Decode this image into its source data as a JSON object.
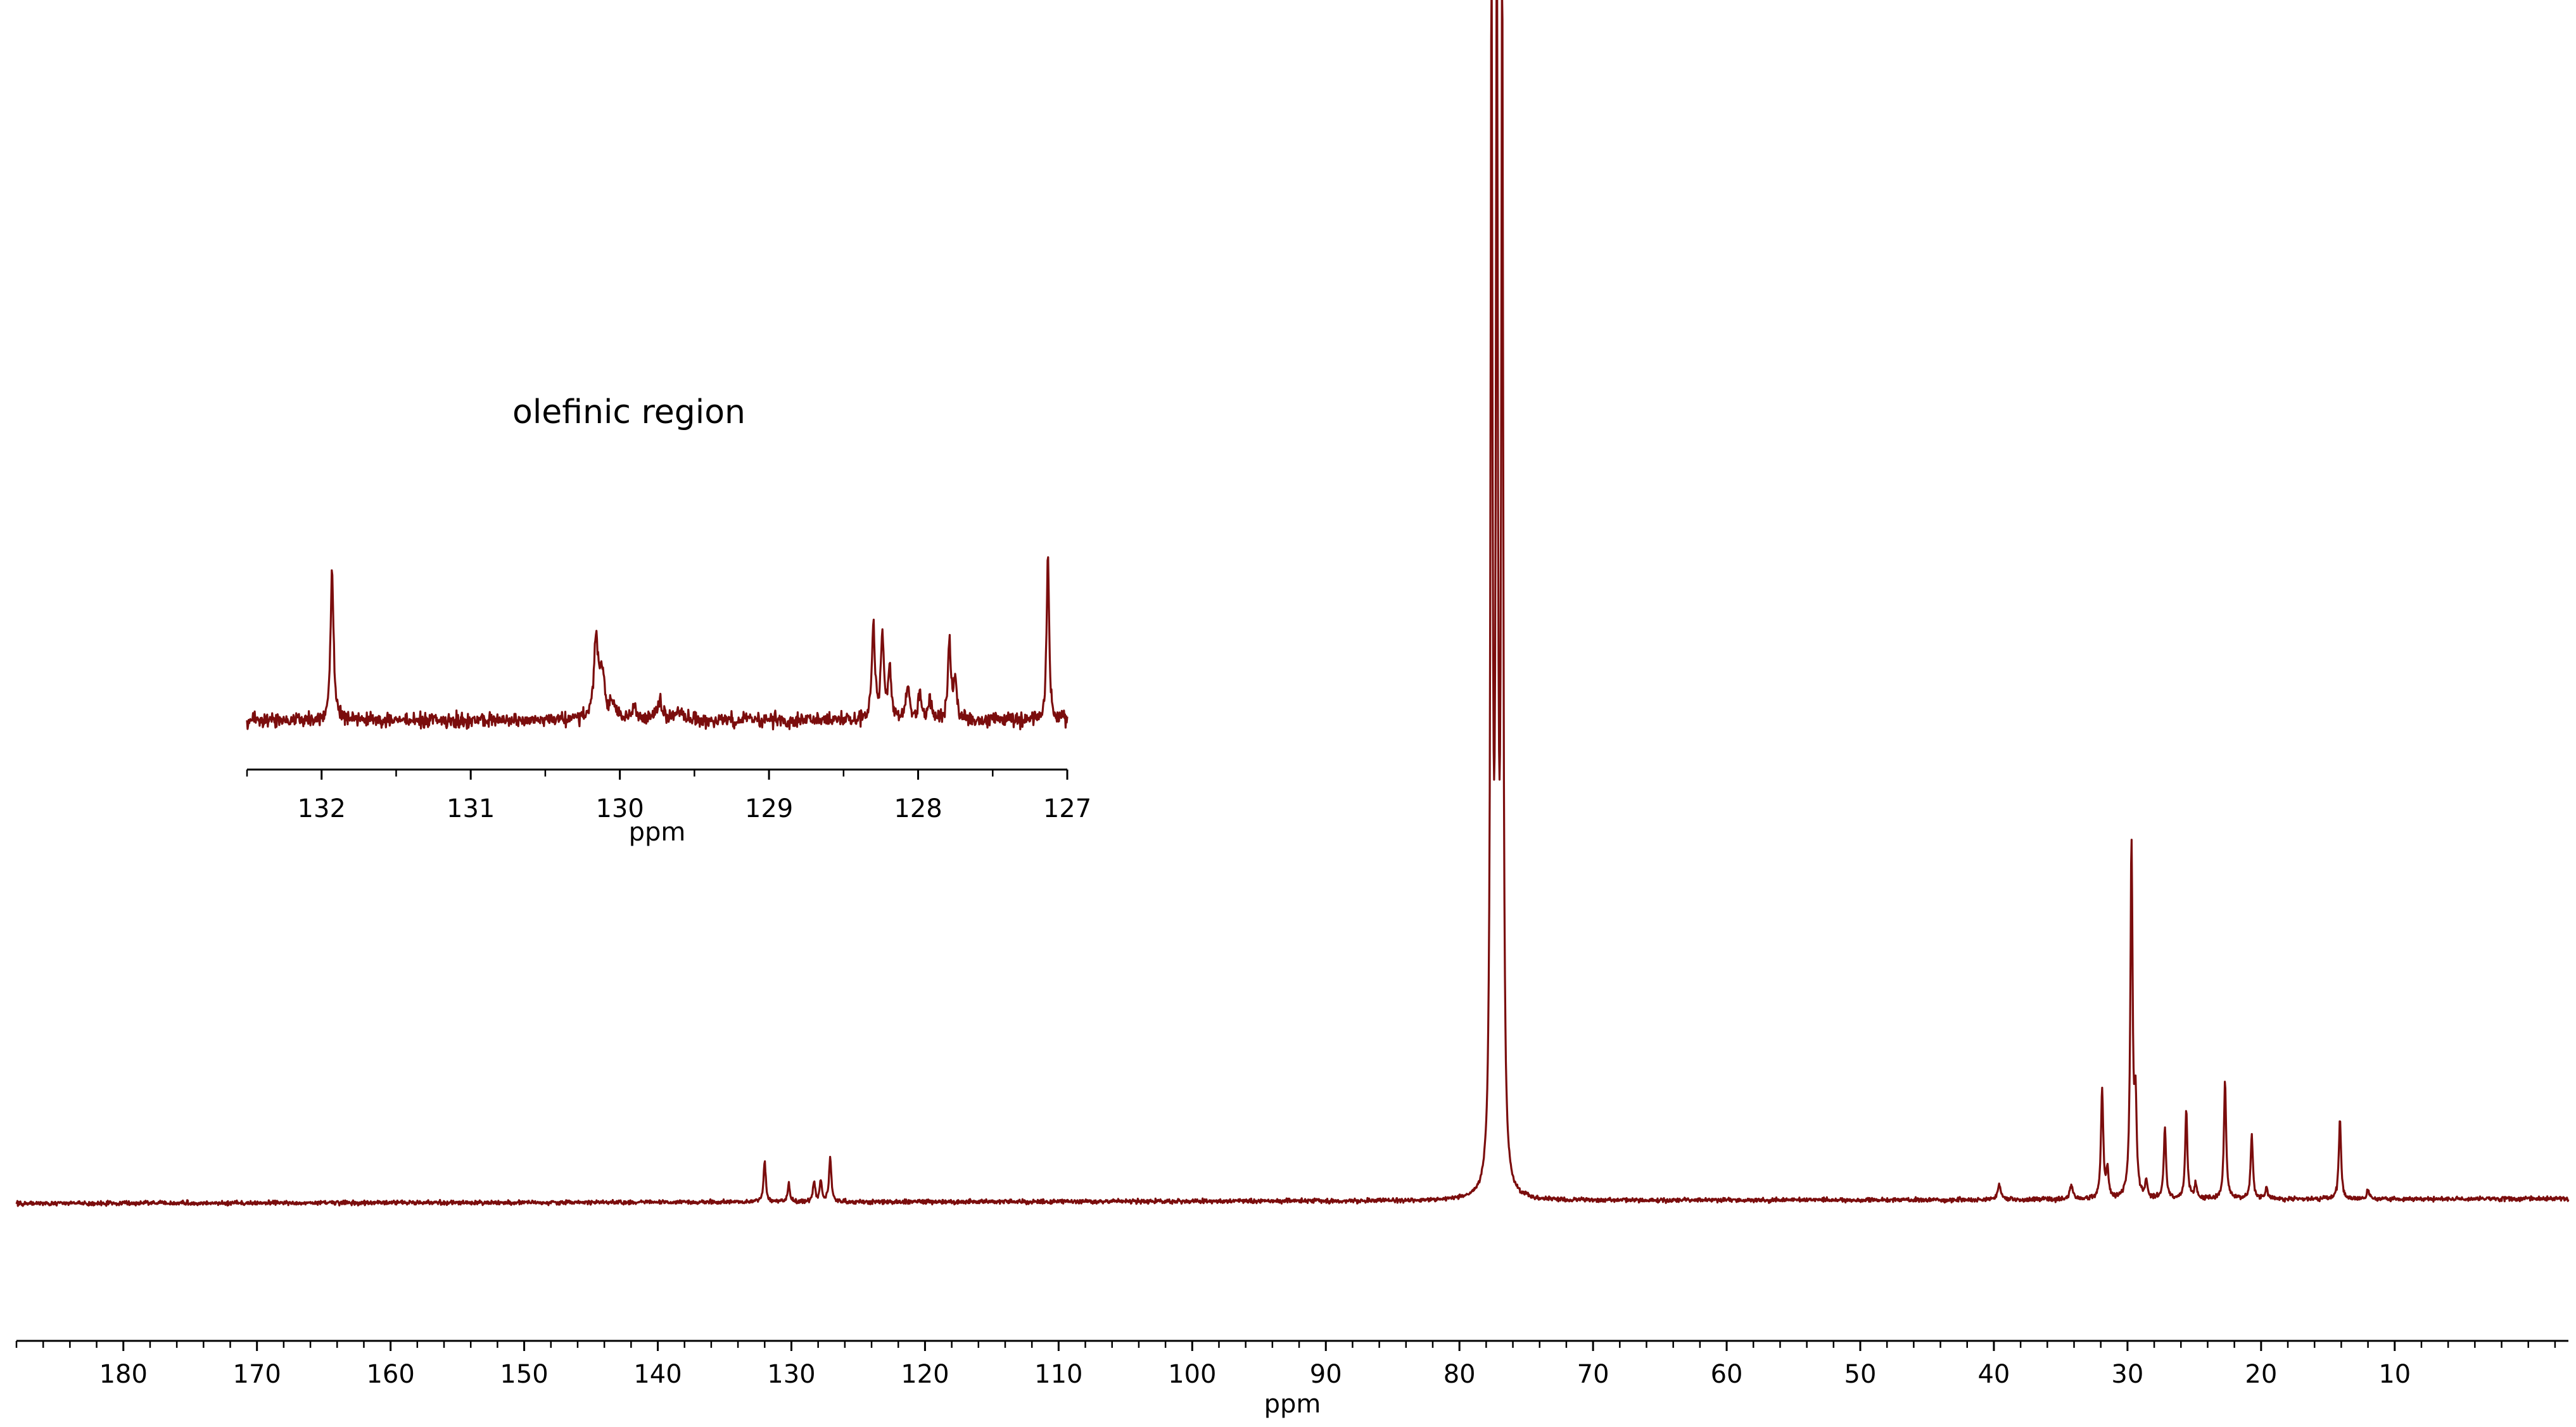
{
  "colors": {
    "spectrum": "#7b0d0d",
    "axis": "#000000",
    "background": "#ffffff"
  },
  "chart_data": [
    {
      "type": "line",
      "description": "13C NMR spectrum, full range",
      "xlabel": "ppm",
      "xlim": [
        188,
        -3
      ],
      "x_reversed": true,
      "major_ticks": [
        180,
        170,
        160,
        150,
        140,
        130,
        120,
        110,
        100,
        90,
        80,
        70,
        60,
        50,
        40,
        30,
        20,
        10
      ],
      "minor_tick_step": 2,
      "grid": false,
      "series": [
        {
          "peaks": [
            {
              "ppm": 77.6,
              "height": 1.0,
              "width": 0.09
            },
            {
              "ppm": 77.2,
              "height": 1.0,
              "width": 0.09
            },
            {
              "ppm": 76.8,
              "height": 1.0,
              "width": 0.09
            },
            {
              "ppm": 29.7,
              "height": 0.3,
              "width": 0.1
            },
            {
              "ppm": 29.4,
              "height": 0.075,
              "width": 0.1
            },
            {
              "ppm": 31.9,
              "height": 0.092,
              "width": 0.1
            },
            {
              "ppm": 31.5,
              "height": 0.025,
              "width": 0.1
            },
            {
              "ppm": 27.2,
              "height": 0.06,
              "width": 0.1
            },
            {
              "ppm": 25.6,
              "height": 0.075,
              "width": 0.1
            },
            {
              "ppm": 22.7,
              "height": 0.1,
              "width": 0.1
            },
            {
              "ppm": 20.7,
              "height": 0.055,
              "width": 0.1
            },
            {
              "ppm": 14.1,
              "height": 0.068,
              "width": 0.1
            },
            {
              "ppm": 132.0,
              "height": 0.035,
              "width": 0.1
            },
            {
              "ppm": 130.2,
              "height": 0.015,
              "width": 0.1
            },
            {
              "ppm": 128.3,
              "height": 0.016,
              "width": 0.1
            },
            {
              "ppm": 127.8,
              "height": 0.017,
              "width": 0.1
            },
            {
              "ppm": 127.1,
              "height": 0.038,
              "width": 0.1
            },
            {
              "ppm": 39.6,
              "height": 0.012,
              "width": 0.15
            },
            {
              "ppm": 34.2,
              "height": 0.012,
              "width": 0.15
            },
            {
              "ppm": 28.6,
              "height": 0.014,
              "width": 0.1
            },
            {
              "ppm": 24.9,
              "height": 0.012,
              "width": 0.1
            },
            {
              "ppm": 19.6,
              "height": 0.01,
              "width": 0.1
            },
            {
              "ppm": 12.0,
              "height": 0.008,
              "width": 0.1
            }
          ]
        }
      ]
    },
    {
      "type": "line",
      "description": "inset zoom of the olefinic region",
      "annotation": "olefinic region",
      "xlabel": "ppm",
      "xlim": [
        132.5,
        127.0
      ],
      "x_reversed": true,
      "major_ticks": [
        132,
        131,
        130,
        129,
        128,
        127
      ],
      "minor_tick_step": 0.5,
      "grid": false,
      "series": [
        {
          "peaks": [
            {
              "ppm": 131.93,
              "height": 1.0,
              "width": 0.012
            },
            {
              "ppm": 130.16,
              "height": 0.5,
              "width": 0.018
            },
            {
              "ppm": 130.12,
              "height": 0.3,
              "width": 0.018
            },
            {
              "ppm": 130.05,
              "height": 0.12,
              "width": 0.02
            },
            {
              "ppm": 129.9,
              "height": 0.08,
              "width": 0.02
            },
            {
              "ppm": 129.73,
              "height": 0.12,
              "width": 0.02
            },
            {
              "ppm": 129.6,
              "height": 0.07,
              "width": 0.02
            },
            {
              "ppm": 128.3,
              "height": 0.6,
              "width": 0.012
            },
            {
              "ppm": 128.24,
              "height": 0.55,
              "width": 0.012
            },
            {
              "ppm": 128.19,
              "height": 0.33,
              "width": 0.012
            },
            {
              "ppm": 128.07,
              "height": 0.25,
              "width": 0.012
            },
            {
              "ppm": 127.99,
              "height": 0.18,
              "width": 0.012
            },
            {
              "ppm": 127.92,
              "height": 0.12,
              "width": 0.012
            },
            {
              "ppm": 127.79,
              "height": 0.5,
              "width": 0.012
            },
            {
              "ppm": 127.75,
              "height": 0.25,
              "width": 0.012
            },
            {
              "ppm": 127.13,
              "height": 1.1,
              "width": 0.01
            }
          ]
        }
      ]
    }
  ]
}
